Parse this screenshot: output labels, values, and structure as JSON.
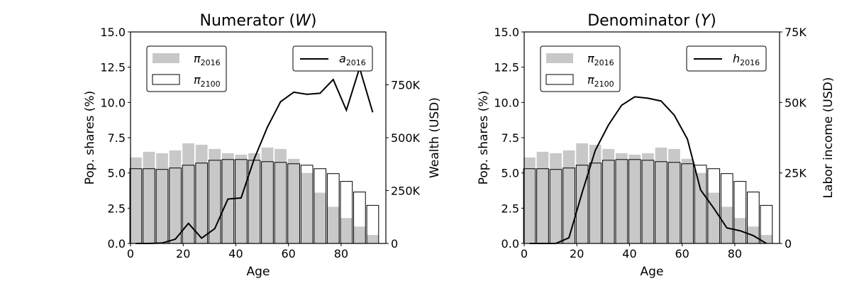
{
  "chart_data": [
    {
      "type": "bar",
      "title_prefix": "Numerator (",
      "title_var": "W",
      "title_suffix": ")",
      "xlabel": "Age",
      "ylabel": "Pop. shares (%)",
      "y2label": "Wealth (USD)",
      "xlim": [
        0,
        97
      ],
      "ylim": [
        0,
        15
      ],
      "y2lim": [
        0,
        1000000
      ],
      "xticks": [
        "0",
        "20",
        "40",
        "60",
        "80"
      ],
      "yticks": [
        "0.0",
        "2.5",
        "5.0",
        "7.5",
        "10.0",
        "12.5",
        "15.0"
      ],
      "y2ticks": [
        "0",
        "250K",
        "500K",
        "750K"
      ],
      "age_groups": [
        2,
        7,
        12,
        17,
        22,
        27,
        32,
        37,
        42,
        47,
        52,
        57,
        62,
        67,
        72,
        77,
        82,
        87,
        92
      ],
      "pi_2016": [
        6.1,
        6.5,
        6.4,
        6.6,
        7.1,
        7.0,
        6.7,
        6.4,
        6.3,
        6.4,
        6.8,
        6.7,
        6.0,
        5.0,
        3.6,
        2.6,
        1.8,
        1.2,
        0.6
      ],
      "pi_2100": [
        5.3,
        5.3,
        5.25,
        5.35,
        5.55,
        5.7,
        5.9,
        5.95,
        5.95,
        5.9,
        5.8,
        5.75,
        5.65,
        5.55,
        5.3,
        4.95,
        4.4,
        3.65,
        2.7
      ],
      "legend_bars": [
        {
          "base": "π",
          "sub": "2016",
          "color": "#c8c8c8"
        },
        {
          "base": "π",
          "sub": "2100",
          "color": "#ffffff"
        }
      ],
      "legend_line": {
        "base": "a",
        "sub": "2016"
      },
      "line": {
        "x": [
          2,
          7,
          12,
          17,
          22,
          27,
          32,
          37,
          42,
          47,
          52,
          57,
          62,
          67,
          72,
          77,
          82,
          87,
          92
        ],
        "y": [
          0,
          0,
          2000,
          20000,
          95000,
          25000,
          70000,
          210000,
          215000,
          400000,
          550000,
          670000,
          715000,
          705000,
          710000,
          775000,
          630000,
          830000,
          620000
        ]
      }
    },
    {
      "type": "bar",
      "title_prefix": "Denominator (",
      "title_var": "Y",
      "title_suffix": ")",
      "xlabel": "Age",
      "ylabel": "Pop. shares (%)",
      "y2label": "Labor income (USD)",
      "xlim": [
        0,
        97
      ],
      "ylim": [
        0,
        15
      ],
      "y2lim": [
        0,
        75000
      ],
      "xticks": [
        "0",
        "20",
        "40",
        "60",
        "80"
      ],
      "yticks": [
        "0.0",
        "2.5",
        "5.0",
        "7.5",
        "10.0",
        "12.5",
        "15.0"
      ],
      "y2ticks": [
        "0",
        "25K",
        "50K",
        "75K"
      ],
      "age_groups": [
        2,
        7,
        12,
        17,
        22,
        27,
        32,
        37,
        42,
        47,
        52,
        57,
        62,
        67,
        72,
        77,
        82,
        87,
        92
      ],
      "pi_2016": [
        6.1,
        6.5,
        6.4,
        6.6,
        7.1,
        7.0,
        6.7,
        6.4,
        6.3,
        6.4,
        6.8,
        6.7,
        6.0,
        5.0,
        3.6,
        2.6,
        1.8,
        1.2,
        0.6
      ],
      "pi_2100": [
        5.3,
        5.3,
        5.25,
        5.35,
        5.55,
        5.7,
        5.9,
        5.95,
        5.95,
        5.9,
        5.8,
        5.75,
        5.65,
        5.55,
        5.3,
        4.95,
        4.4,
        3.65,
        2.7
      ],
      "legend_bars": [
        {
          "base": "π",
          "sub": "2016",
          "color": "#c8c8c8"
        },
        {
          "base": "π",
          "sub": "2100",
          "color": "#ffffff"
        }
      ],
      "legend_line": {
        "base": "h",
        "sub": "2016"
      },
      "line": {
        "x": [
          2,
          7,
          12,
          17,
          22,
          27,
          32,
          37,
          42,
          47,
          52,
          57,
          62,
          67,
          72,
          77,
          82,
          87,
          92
        ],
        "y": [
          0,
          0,
          0,
          2000,
          18000,
          33000,
          42000,
          49000,
          52000,
          51500,
          50500,
          45500,
          37000,
          19000,
          12500,
          5500,
          4500,
          2800,
          0
        ]
      }
    }
  ]
}
